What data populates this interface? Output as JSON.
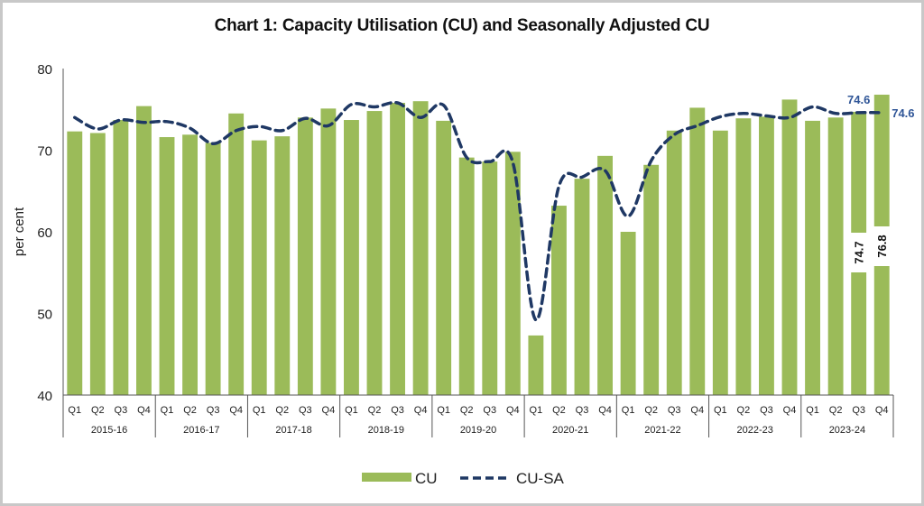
{
  "chart_data": {
    "type": "bar",
    "title": "Chart 1: Capacity Utilisation (CU) and Seasonally Adjusted CU",
    "xlabel": "",
    "ylabel": "per cent",
    "ylim": [
      40,
      80
    ],
    "yticks": [
      40,
      50,
      60,
      70,
      80
    ],
    "grid": false,
    "legend_position": "bottom",
    "groups": [
      "2015-16",
      "2016-17",
      "2017-18",
      "2018-19",
      "2019-20",
      "2020-21",
      "2021-22",
      "2022-23",
      "2023-24"
    ],
    "quarters": [
      "Q1",
      "Q2",
      "Q3",
      "Q4"
    ],
    "series": [
      {
        "name": "CU",
        "type": "bar",
        "color": "#9BBB59",
        "values": [
          72.3,
          72.1,
          73.7,
          75.4,
          71.6,
          71.9,
          70.9,
          74.5,
          71.2,
          71.7,
          74.0,
          75.1,
          73.7,
          74.8,
          75.8,
          76.0,
          73.6,
          69.1,
          68.6,
          69.8,
          47.3,
          63.2,
          66.5,
          69.3,
          60.0,
          68.2,
          72.4,
          75.2,
          72.4,
          73.9,
          74.1,
          76.2,
          73.6,
          74.0,
          74.7,
          76.8
        ]
      },
      {
        "name": "CU-SA",
        "type": "line",
        "style": "dashed",
        "color": "#1F3864",
        "values": [
          74.0,
          72.6,
          73.7,
          73.4,
          73.5,
          72.7,
          70.8,
          72.4,
          72.9,
          72.4,
          73.9,
          73.0,
          75.6,
          75.3,
          75.8,
          74.0,
          75.5,
          69.1,
          68.6,
          68.5,
          49.2,
          65.6,
          66.7,
          67.5,
          61.9,
          68.7,
          71.9,
          73.0,
          74.1,
          74.5,
          74.2,
          74.0,
          75.3,
          74.5,
          74.6,
          74.6
        ]
      }
    ],
    "data_labels": [
      {
        "series": "CU",
        "group": "2023-24",
        "quarter": "Q3",
        "text": "74.7"
      },
      {
        "series": "CU",
        "group": "2023-24",
        "quarter": "Q4",
        "text": "76.8"
      },
      {
        "series": "CU-SA",
        "group": "2023-24",
        "quarter": "Q3",
        "text": "74.6"
      },
      {
        "series": "CU-SA",
        "group": "2023-24",
        "quarter": "Q4",
        "text": "74.6"
      }
    ]
  },
  "legend": {
    "cu_label": "CU",
    "cusa_label": "CU-SA"
  }
}
